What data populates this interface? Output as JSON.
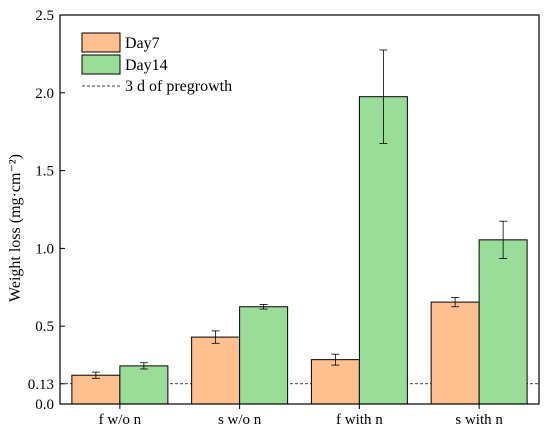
{
  "chart_data": {
    "type": "bar",
    "title": "",
    "xlabel": "",
    "ylabel": "Weight loss (mg·cm⁻²)",
    "ylim": [
      0,
      2.5
    ],
    "yticks": [
      "0.0",
      "0.13",
      "0.5",
      "1.0",
      "1.5",
      "2.0",
      "2.5"
    ],
    "ytick_values": [
      0.0,
      0.13,
      0.5,
      1.0,
      1.5,
      2.0,
      2.5
    ],
    "categories": [
      "f w/o n",
      "s w/o n",
      "f with n",
      "s with n"
    ],
    "series": [
      {
        "name": "Day7",
        "color": "#FFC08F",
        "values": [
          0.185,
          0.43,
          0.285,
          0.655
        ],
        "errors": [
          0.02,
          0.04,
          0.035,
          0.03
        ]
      },
      {
        "name": "Day14",
        "color": "#99DD99",
        "values": [
          0.245,
          0.625,
          1.975,
          1.055
        ],
        "errors": [
          0.02,
          0.015,
          0.3,
          0.12
        ]
      }
    ],
    "reference_line": {
      "name": "3 d of pregrowth",
      "value": 0.13,
      "style": "dashed"
    },
    "legend": {
      "position": "top-left",
      "entries": [
        "Day7",
        "Day14",
        "3 d of pregrowth"
      ]
    },
    "grid": false
  }
}
